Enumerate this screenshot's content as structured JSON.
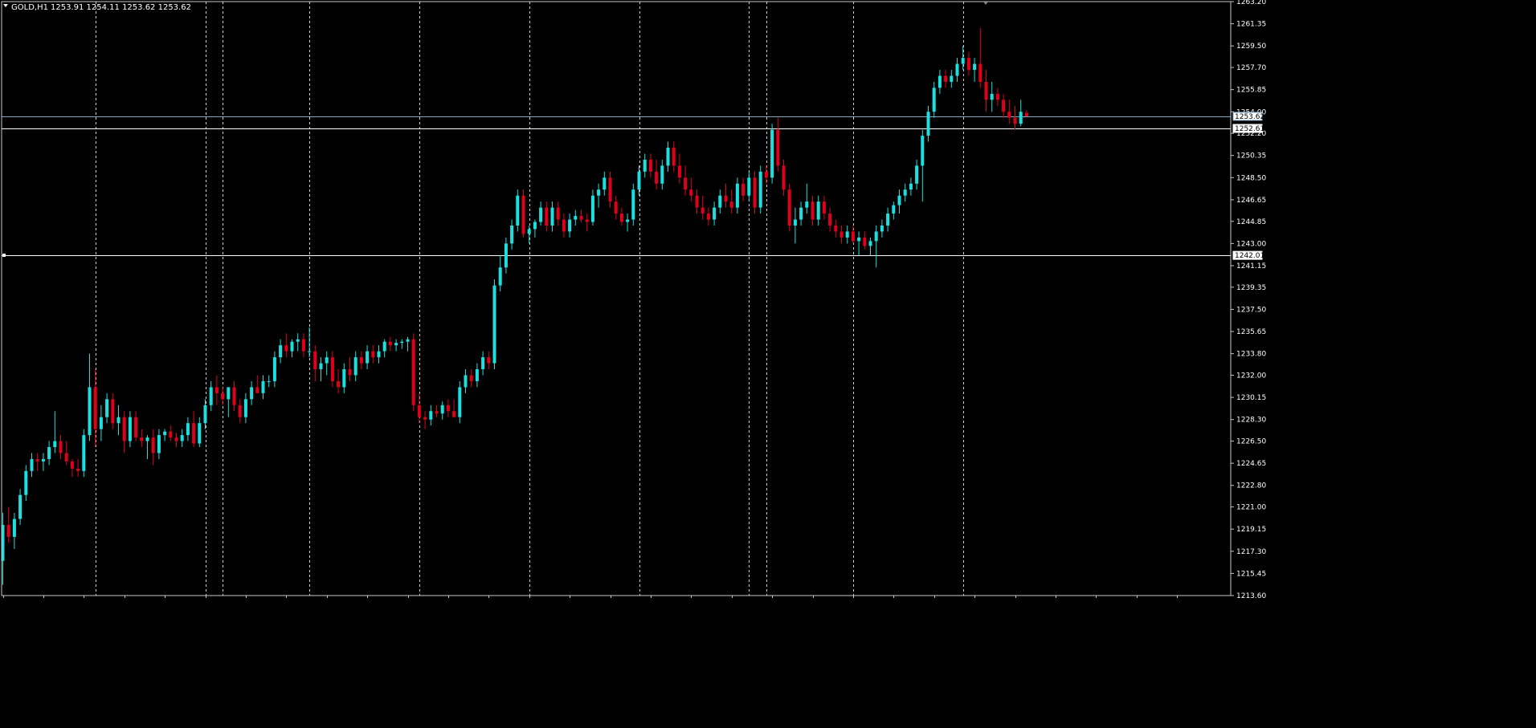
{
  "header": {
    "symbol": "GOLD,H1",
    "ohlc": "1253.91 1254.11 1253.62 1253.62"
  },
  "colors": {
    "background": "#000000",
    "frame": "#c8c8c8",
    "bull": "#1ce0e0",
    "bear": "#e0001c",
    "grid": "#cfcfcf",
    "hline": "#ffffff",
    "bid_line": "#7fa7c7"
  },
  "chart_data": {
    "type": "candlestick",
    "symbol": "GOLD",
    "timeframe": "H1",
    "ylim": [
      1213.6,
      1263.2
    ],
    "yticks": [
      "1263.20",
      "1261.35",
      "1259.50",
      "1257.70",
      "1255.85",
      "1254.00",
      "1252.20",
      "1250.35",
      "1248.50",
      "1246.65",
      "1244.85",
      "1243.00",
      "1241.15",
      "1239.35",
      "1237.50",
      "1235.65",
      "1233.80",
      "1232.00",
      "1230.15",
      "1228.30",
      "1226.50",
      "1224.65",
      "1222.80",
      "1221.00",
      "1219.15",
      "1217.30",
      "1215.45",
      "1213.60"
    ],
    "price_tags": [
      {
        "label": "1253.62",
        "value": 1253.62,
        "style": "bid"
      },
      {
        "label": "1252.61",
        "value": 1252.61,
        "style": "hline"
      },
      {
        "label": "1242.01",
        "value": 1242.01,
        "style": "hline"
      }
    ],
    "vgrid_bar_index": [
      16,
      35,
      38,
      53,
      72,
      91,
      110,
      129,
      132,
      147,
      166
    ],
    "candles": [
      [
        1216.5,
        1220.5,
        1214.5,
        1219.5
      ],
      [
        1219.5,
        1221.0,
        1218.0,
        1218.5
      ],
      [
        1218.5,
        1220.5,
        1217.5,
        1220.0
      ],
      [
        1220.0,
        1222.5,
        1219.5,
        1222.0
      ],
      [
        1222.0,
        1224.5,
        1221.5,
        1224.0
      ],
      [
        1224.0,
        1225.5,
        1223.5,
        1225.0
      ],
      [
        1225.0,
        1225.5,
        1224.0,
        1224.8
      ],
      [
        1224.8,
        1225.5,
        1224.0,
        1225.0
      ],
      [
        1225.0,
        1226.5,
        1224.5,
        1226.0
      ],
      [
        1226.0,
        1229.0,
        1225.5,
        1226.5
      ],
      [
        1226.5,
        1227.0,
        1225.0,
        1225.5
      ],
      [
        1225.5,
        1226.5,
        1224.5,
        1224.8
      ],
      [
        1224.8,
        1225.0,
        1223.5,
        1224.2
      ],
      [
        1224.2,
        1225.0,
        1223.5,
        1224.0
      ],
      [
        1224.0,
        1227.5,
        1223.5,
        1227.0
      ],
      [
        1227.0,
        1233.8,
        1226.5,
        1231.0
      ],
      [
        1231.0,
        1232.5,
        1226.0,
        1227.5
      ],
      [
        1227.5,
        1229.5,
        1226.5,
        1228.5
      ],
      [
        1228.5,
        1230.5,
        1228.0,
        1230.0
      ],
      [
        1230.0,
        1230.5,
        1227.5,
        1228.0
      ],
      [
        1228.0,
        1229.5,
        1227.0,
        1228.5
      ],
      [
        1228.5,
        1229.0,
        1225.5,
        1226.5
      ],
      [
        1226.5,
        1229.0,
        1226.0,
        1228.5
      ],
      [
        1228.5,
        1229.0,
        1226.5,
        1226.8
      ],
      [
        1226.8,
        1227.5,
        1226.0,
        1226.5
      ],
      [
        1226.5,
        1227.0,
        1225.0,
        1226.8
      ],
      [
        1226.8,
        1227.5,
        1224.5,
        1225.5
      ],
      [
        1225.5,
        1227.5,
        1225.0,
        1227.0
      ],
      [
        1227.0,
        1227.5,
        1226.5,
        1227.3
      ],
      [
        1227.3,
        1227.8,
        1226.5,
        1226.8
      ],
      [
        1226.8,
        1227.2,
        1226.0,
        1226.5
      ],
      [
        1226.5,
        1227.5,
        1226.0,
        1227.0
      ],
      [
        1227.0,
        1228.5,
        1226.5,
        1228.0
      ],
      [
        1228.0,
        1229.0,
        1226.0,
        1226.3
      ],
      [
        1226.3,
        1228.5,
        1226.0,
        1228.0
      ],
      [
        1228.0,
        1230.0,
        1227.5,
        1229.5
      ],
      [
        1229.5,
        1231.5,
        1229.0,
        1231.0
      ],
      [
        1231.0,
        1232.0,
        1229.5,
        1230.5
      ],
      [
        1230.5,
        1231.0,
        1229.5,
        1230.0
      ],
      [
        1230.0,
        1231.0,
        1228.5,
        1231.0
      ],
      [
        1231.0,
        1231.5,
        1229.0,
        1229.5
      ],
      [
        1229.5,
        1230.0,
        1228.0,
        1228.5
      ],
      [
        1228.5,
        1230.5,
        1228.0,
        1230.0
      ],
      [
        1230.0,
        1231.5,
        1229.5,
        1231.0
      ],
      [
        1231.0,
        1232.0,
        1230.5,
        1230.5
      ],
      [
        1230.5,
        1232.0,
        1230.0,
        1231.5
      ],
      [
        1231.5,
        1232.0,
        1231.0,
        1231.5
      ],
      [
        1231.5,
        1234.0,
        1231.0,
        1233.5
      ],
      [
        1233.5,
        1235.0,
        1233.0,
        1234.5
      ],
      [
        1234.5,
        1235.5,
        1233.5,
        1234.0
      ],
      [
        1234.0,
        1235.0,
        1233.5,
        1234.8
      ],
      [
        1234.8,
        1235.5,
        1234.0,
        1235.0
      ],
      [
        1235.0,
        1235.5,
        1233.5,
        1234.0
      ],
      [
        1234.0,
        1236.0,
        1233.5,
        1234.0
      ],
      [
        1234.0,
        1234.5,
        1231.5,
        1232.5
      ],
      [
        1232.5,
        1233.5,
        1231.5,
        1233.0
      ],
      [
        1233.0,
        1234.0,
        1232.0,
        1233.5
      ],
      [
        1233.5,
        1234.0,
        1231.0,
        1231.5
      ],
      [
        1231.5,
        1232.5,
        1230.5,
        1231.0
      ],
      [
        1231.0,
        1233.0,
        1230.5,
        1232.5
      ],
      [
        1232.5,
        1233.5,
        1231.5,
        1232.0
      ],
      [
        1232.0,
        1234.0,
        1231.5,
        1233.5
      ],
      [
        1233.5,
        1234.0,
        1232.5,
        1233.0
      ],
      [
        1233.0,
        1234.5,
        1232.5,
        1234.0
      ],
      [
        1234.0,
        1234.5,
        1233.0,
        1233.5
      ],
      [
        1233.5,
        1234.5,
        1233.0,
        1234.0
      ],
      [
        1234.0,
        1235.0,
        1233.5,
        1234.8
      ],
      [
        1234.8,
        1235.2,
        1234.0,
        1234.5
      ],
      [
        1234.5,
        1235.0,
        1234.0,
        1234.7
      ],
      [
        1234.7,
        1235.0,
        1234.2,
        1234.8
      ],
      [
        1234.8,
        1235.2,
        1234.0,
        1235.0
      ],
      [
        1235.0,
        1235.5,
        1229.0,
        1229.5
      ],
      [
        1229.5,
        1230.5,
        1228.0,
        1228.5
      ],
      [
        1228.5,
        1229.0,
        1227.5,
        1228.3
      ],
      [
        1228.3,
        1229.5,
        1227.8,
        1229.0
      ],
      [
        1229.0,
        1229.5,
        1228.5,
        1228.8
      ],
      [
        1228.8,
        1229.8,
        1228.3,
        1229.5
      ],
      [
        1229.5,
        1230.0,
        1228.5,
        1229.0
      ],
      [
        1229.0,
        1230.0,
        1228.5,
        1228.5
      ],
      [
        1228.5,
        1231.5,
        1228.0,
        1231.0
      ],
      [
        1231.0,
        1232.5,
        1230.5,
        1232.0
      ],
      [
        1232.0,
        1232.5,
        1231.0,
        1231.5
      ],
      [
        1231.5,
        1233.0,
        1231.0,
        1232.5
      ],
      [
        1232.5,
        1234.0,
        1232.0,
        1233.5
      ],
      [
        1233.5,
        1234.0,
        1232.5,
        1233.0
      ],
      [
        1233.0,
        1240.0,
        1232.5,
        1239.5
      ],
      [
        1239.5,
        1242.0,
        1239.0,
        1241.0
      ],
      [
        1241.0,
        1243.5,
        1240.5,
        1243.0
      ],
      [
        1243.0,
        1245.0,
        1242.5,
        1244.5
      ],
      [
        1244.5,
        1247.5,
        1244.0,
        1247.0
      ],
      [
        1247.0,
        1247.5,
        1243.5,
        1243.8
      ],
      [
        1243.8,
        1244.5,
        1243.0,
        1244.2
      ],
      [
        1244.2,
        1245.0,
        1243.5,
        1244.8
      ],
      [
        1244.8,
        1246.5,
        1244.5,
        1246.0
      ],
      [
        1246.0,
        1246.5,
        1244.0,
        1244.5
      ],
      [
        1244.5,
        1246.5,
        1244.0,
        1246.0
      ],
      [
        1246.0,
        1246.5,
        1244.5,
        1245.0
      ],
      [
        1245.0,
        1245.5,
        1243.5,
        1244.0
      ],
      [
        1244.0,
        1245.5,
        1243.5,
        1245.0
      ],
      [
        1245.0,
        1245.8,
        1244.5,
        1245.3
      ],
      [
        1245.3,
        1245.8,
        1244.8,
        1245.0
      ],
      [
        1245.0,
        1245.5,
        1244.0,
        1244.8
      ],
      [
        1244.8,
        1247.5,
        1244.5,
        1247.0
      ],
      [
        1247.0,
        1248.0,
        1246.0,
        1247.5
      ],
      [
        1247.5,
        1249.0,
        1247.0,
        1248.5
      ],
      [
        1248.5,
        1249.0,
        1246.0,
        1246.5
      ],
      [
        1246.5,
        1247.0,
        1245.0,
        1245.5
      ],
      [
        1245.5,
        1246.0,
        1244.5,
        1244.8
      ],
      [
        1244.8,
        1245.5,
        1244.0,
        1245.0
      ],
      [
        1245.0,
        1248.0,
        1244.5,
        1247.5
      ],
      [
        1247.5,
        1249.5,
        1247.0,
        1249.0
      ],
      [
        1249.0,
        1250.5,
        1248.5,
        1250.0
      ],
      [
        1250.0,
        1250.5,
        1248.5,
        1249.0
      ],
      [
        1249.0,
        1250.0,
        1247.5,
        1248.0
      ],
      [
        1248.0,
        1250.0,
        1247.5,
        1249.5
      ],
      [
        1249.5,
        1251.5,
        1249.0,
        1251.0
      ],
      [
        1251.0,
        1251.5,
        1249.0,
        1249.5
      ],
      [
        1249.5,
        1250.5,
        1248.0,
        1248.5
      ],
      [
        1248.5,
        1249.5,
        1247.0,
        1247.5
      ],
      [
        1247.5,
        1248.5,
        1246.5,
        1247.0
      ],
      [
        1247.0,
        1247.5,
        1245.5,
        1246.0
      ],
      [
        1246.0,
        1247.0,
        1245.0,
        1245.5
      ],
      [
        1245.5,
        1246.0,
        1244.5,
        1245.0
      ],
      [
        1245.0,
        1246.5,
        1244.5,
        1246.0
      ],
      [
        1246.0,
        1247.5,
        1245.5,
        1247.0
      ],
      [
        1247.0,
        1248.0,
        1246.0,
        1246.5
      ],
      [
        1246.5,
        1247.5,
        1245.5,
        1246.0
      ],
      [
        1246.0,
        1248.5,
        1245.5,
        1248.0
      ],
      [
        1248.0,
        1248.5,
        1246.5,
        1247.0
      ],
      [
        1247.0,
        1249.0,
        1246.5,
        1248.5
      ],
      [
        1248.5,
        1249.0,
        1245.5,
        1246.0
      ],
      [
        1246.0,
        1249.5,
        1245.5,
        1249.0
      ],
      [
        1249.0,
        1249.5,
        1248.0,
        1248.5
      ],
      [
        1248.5,
        1253.0,
        1248.0,
        1252.5
      ],
      [
        1252.5,
        1253.5,
        1249.0,
        1249.5
      ],
      [
        1249.5,
        1250.0,
        1247.0,
        1247.5
      ],
      [
        1247.5,
        1248.0,
        1244.0,
        1244.5
      ],
      [
        1244.5,
        1246.0,
        1243.0,
        1245.0
      ],
      [
        1245.0,
        1246.5,
        1244.5,
        1246.0
      ],
      [
        1246.0,
        1248.0,
        1245.5,
        1246.5
      ],
      [
        1246.5,
        1247.0,
        1244.5,
        1245.0
      ],
      [
        1245.0,
        1247.0,
        1244.5,
        1246.5
      ],
      [
        1246.5,
        1247.0,
        1245.0,
        1245.5
      ],
      [
        1245.5,
        1246.0,
        1244.0,
        1244.5
      ],
      [
        1244.5,
        1245.0,
        1243.5,
        1244.0
      ],
      [
        1244.0,
        1244.5,
        1243.0,
        1243.5
      ],
      [
        1243.5,
        1244.5,
        1243.0,
        1244.0
      ],
      [
        1244.0,
        1244.5,
        1243.0,
        1243.2
      ],
      [
        1243.2,
        1244.0,
        1242.0,
        1243.5
      ],
      [
        1243.5,
        1244.0,
        1242.5,
        1242.8
      ],
      [
        1242.8,
        1243.5,
        1242.0,
        1243.2
      ],
      [
        1243.2,
        1244.5,
        1241.0,
        1244.0
      ],
      [
        1244.0,
        1245.0,
        1243.5,
        1244.5
      ],
      [
        1244.5,
        1246.0,
        1244.0,
        1245.5
      ],
      [
        1245.5,
        1246.5,
        1245.0,
        1246.2
      ],
      [
        1246.2,
        1247.5,
        1245.5,
        1247.0
      ],
      [
        1247.0,
        1248.0,
        1246.5,
        1247.5
      ],
      [
        1247.5,
        1248.5,
        1247.0,
        1248.0
      ],
      [
        1248.0,
        1250.0,
        1247.5,
        1249.5
      ],
      [
        1249.5,
        1252.5,
        1246.5,
        1252.0
      ],
      [
        1252.0,
        1254.5,
        1251.5,
        1254.0
      ],
      [
        1254.0,
        1256.5,
        1253.5,
        1256.0
      ],
      [
        1256.0,
        1257.5,
        1255.5,
        1257.0
      ],
      [
        1257.0,
        1257.5,
        1256.0,
        1256.5
      ],
      [
        1256.5,
        1257.5,
        1256.0,
        1257.0
      ],
      [
        1257.0,
        1258.5,
        1256.5,
        1258.0
      ],
      [
        1258.0,
        1259.5,
        1257.5,
        1258.5
      ],
      [
        1258.5,
        1259.0,
        1257.0,
        1257.5
      ],
      [
        1257.5,
        1258.5,
        1256.5,
        1258.0
      ],
      [
        1258.0,
        1261.0,
        1256.0,
        1256.5
      ],
      [
        1256.5,
        1257.5,
        1254.0,
        1255.0
      ],
      [
        1255.0,
        1256.5,
        1254.0,
        1255.5
      ],
      [
        1255.5,
        1256.0,
        1254.5,
        1255.0
      ],
      [
        1255.0,
        1255.5,
        1253.5,
        1254.0
      ],
      [
        1254.0,
        1255.0,
        1253.0,
        1253.5
      ],
      [
        1253.5,
        1254.5,
        1252.5,
        1253.0
      ],
      [
        1253.0,
        1255.0,
        1252.8,
        1254.0
      ],
      [
        1253.91,
        1254.11,
        1253.62,
        1253.62
      ]
    ]
  }
}
